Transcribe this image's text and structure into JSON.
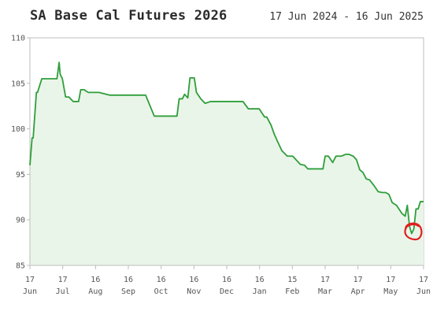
{
  "header": {
    "title": "SA Base Cal Futures 2026",
    "date_range": "17 Jun 2024 - 16 Jun 2025"
  },
  "colors": {
    "line": "#2e9e3a",
    "fill": "#eaf5e9",
    "grid": "#e6e6e6",
    "axis": "#bdbdbd",
    "annotation": "#e02020"
  },
  "chart_data": {
    "type": "area",
    "title": "SA Base Cal Futures 2026",
    "xlabel": "",
    "ylabel": "",
    "ylim": [
      85,
      110
    ],
    "yticks": [
      85,
      90,
      95,
      100,
      105,
      110
    ],
    "grid": false,
    "x_tick_labels": [
      {
        "day": "17",
        "month": "Jun"
      },
      {
        "day": "17",
        "month": "Jul"
      },
      {
        "day": "16",
        "month": "Aug"
      },
      {
        "day": "16",
        "month": "Sep"
      },
      {
        "day": "16",
        "month": "Oct"
      },
      {
        "day": "16",
        "month": "Nov"
      },
      {
        "day": "16",
        "month": "Dec"
      },
      {
        "day": "16",
        "month": "Jan"
      },
      {
        "day": "15",
        "month": "Feb"
      },
      {
        "day": "17",
        "month": "Mar"
      },
      {
        "day": "17",
        "month": "Apr"
      },
      {
        "day": "17",
        "month": "May"
      },
      {
        "day": "17",
        "month": "Jun"
      }
    ],
    "series": [
      {
        "x": [
          "2024-06-17",
          "2024-06-19",
          "2024-06-20",
          "2024-06-23",
          "2024-06-24",
          "2024-06-28",
          "2024-07-01",
          "2024-07-05",
          "2024-07-12",
          "2024-07-14",
          "2024-07-15",
          "2024-07-17",
          "2024-07-20",
          "2024-07-23",
          "2024-07-27",
          "2024-08-01",
          "2024-08-03",
          "2024-08-06",
          "2024-08-10",
          "2024-08-20",
          "2024-08-30",
          "2024-09-15",
          "2024-09-30",
          "2024-10-02",
          "2024-10-10",
          "2024-10-20",
          "2024-10-31",
          "2024-11-02",
          "2024-11-05",
          "2024-11-07",
          "2024-11-10",
          "2024-11-12",
          "2024-11-16",
          "2024-11-18",
          "2024-11-22",
          "2024-11-26",
          "2024-12-01",
          "2024-12-10",
          "2024-12-20",
          "2024-12-31",
          "2025-01-05",
          "2025-01-15",
          "2025-01-20",
          "2025-01-22",
          "2025-01-26",
          "2025-01-29",
          "2025-02-01",
          "2025-02-05",
          "2025-02-10",
          "2025-02-15",
          "2025-02-22",
          "2025-02-26",
          "2025-03-01",
          "2025-03-10",
          "2025-03-15",
          "2025-03-17",
          "2025-03-20",
          "2025-03-24",
          "2025-03-27",
          "2025-04-01",
          "2025-04-05",
          "2025-04-08",
          "2025-04-12",
          "2025-04-15",
          "2025-04-18",
          "2025-04-21",
          "2025-04-24",
          "2025-04-27",
          "2025-05-01",
          "2025-05-05",
          "2025-05-09",
          "2025-05-12",
          "2025-05-15",
          "2025-05-18",
          "2025-05-22",
          "2025-05-27",
          "2025-05-30",
          "2025-06-01",
          "2025-06-03",
          "2025-06-05",
          "2025-06-07",
          "2025-06-09",
          "2025-06-11",
          "2025-06-13",
          "2025-06-16"
        ],
        "values": [
          96.0,
          99.0,
          99.0,
          104.0,
          104.0,
          105.5,
          105.5,
          105.5,
          105.5,
          107.3,
          106.0,
          105.5,
          103.5,
          103.5,
          103.0,
          103.0,
          104.3,
          104.3,
          104.0,
          104.0,
          103.7,
          103.7,
          103.7,
          103.7,
          101.4,
          101.4,
          101.4,
          103.3,
          103.3,
          103.8,
          103.4,
          105.6,
          105.6,
          104.0,
          103.3,
          102.8,
          103.0,
          103.0,
          103.0,
          103.0,
          102.2,
          102.2,
          101.3,
          101.3,
          100.4,
          99.4,
          98.6,
          97.6,
          97.0,
          97.0,
          96.1,
          96.0,
          95.6,
          95.6,
          95.6,
          97.0,
          97.0,
          96.3,
          97.0,
          97.0,
          97.2,
          97.2,
          97.0,
          96.6,
          95.5,
          95.2,
          94.5,
          94.4,
          93.8,
          93.1,
          93.0,
          93.0,
          92.8,
          91.9,
          91.6,
          90.7,
          90.4,
          91.6,
          89.3,
          88.5,
          89.0,
          91.2,
          91.2,
          92.0,
          92.0
        ]
      }
    ],
    "annotation": {
      "type": "hand-drawn circle",
      "x": "2025-06-06",
      "y": 88.8
    }
  }
}
